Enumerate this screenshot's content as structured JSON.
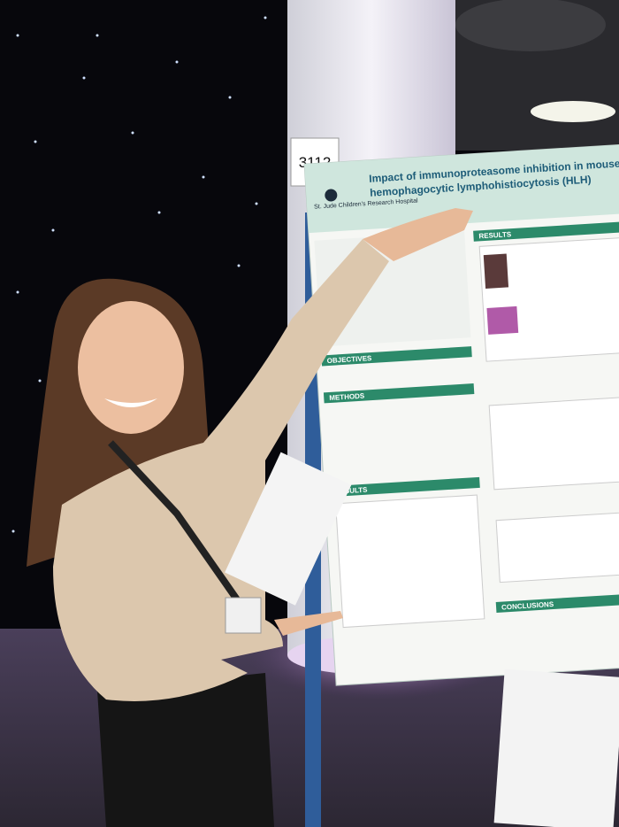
{
  "booth_sign": "3112",
  "poster": {
    "title_lines": [
      "Impact of immunoproteasome inhibition in mouse",
      "hemophagocytic lymphohistiocytosis (HLH)"
    ],
    "logo": "St. Jude Children's Research Hospital",
    "sections": [
      "RESULTS",
      "OBJECTIVES",
      "METHODS",
      "RESULTS",
      "CONCLUSIONS"
    ]
  }
}
